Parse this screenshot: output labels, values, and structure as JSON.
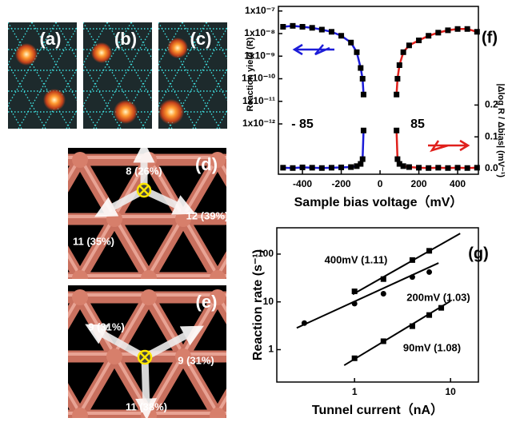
{
  "panels": [
    {
      "label": "(a)"
    },
    {
      "label": "(b)"
    },
    {
      "label": "(c)"
    },
    {
      "label": "(d)",
      "arrows": [
        "8 (26%)",
        "12 (39%)",
        "11 (35%)"
      ]
    },
    {
      "label": "(e)",
      "arrows": [
        "9 (31%)",
        "9 (31%)",
        "11 (38%)"
      ]
    }
  ],
  "chart_data": [
    {
      "type": "line",
      "label": "(f)",
      "ylabel": "Reaction yield (R)",
      "y2label": "|Δlog R / Δbias| (mV⁻¹)",
      "xlabel": "Sample bias voltage（mV）",
      "annotations": [
        "- 85",
        "85"
      ],
      "xlim": [
        -524,
        507
      ],
      "xticks": [
        -400,
        -200,
        0,
        200,
        400
      ],
      "ylog": true,
      "ylim": [
        5.9e-15,
        1.6e-07
      ],
      "yticks": [
        {
          "value": 1e-07,
          "label": "1x10⁻⁷"
        },
        {
          "value": 1e-08,
          "label": "1x10⁻⁸"
        },
        {
          "value": 1e-09,
          "label": "1x10⁻⁹"
        },
        {
          "value": 1e-10,
          "label": "1x10⁻¹⁰"
        },
        {
          "value": 1e-11,
          "label": "1x10⁻¹¹"
        },
        {
          "value": 1e-12,
          "label": "1x10⁻¹²"
        }
      ],
      "y2lim": [
        -0.0175,
        0.51
      ],
      "y2ticks": [
        {
          "value": 0,
          "label": "0.0"
        },
        0.1,
        0.2
      ],
      "marker_color": "#000000",
      "series": [
        {
          "color": "#1c1cd8",
          "x": [
            -500,
            -450,
            -400,
            -350,
            -300,
            -250,
            -200,
            -150,
            -120,
            -100,
            -90,
            -85
          ],
          "values": [
            2e-08,
            2.2e-08,
            2e-08,
            1.8e-08,
            1.5e-08,
            1.2e-08,
            8e-09,
            4e-09,
            1.5e-09,
            3e-10,
            1e-10,
            2e-11
          ]
        },
        {
          "color": "#e0201c",
          "x": [
            85,
            90,
            100,
            120,
            150,
            200,
            250,
            300,
            350,
            400,
            450,
            500
          ],
          "values": [
            2e-11,
            1e-10,
            4e-10,
            1.5e-09,
            3e-09,
            5e-09,
            8e-09,
            1.1e-08,
            1.4e-08,
            1.6e-08,
            1.6e-08,
            1.2e-08
          ]
        },
        {
          "color": "#1c1cd8",
          "axis": "y2",
          "x": [
            -500,
            -450,
            -400,
            -350,
            -300,
            -250,
            -200,
            -150,
            -120,
            -100,
            -90,
            -85
          ],
          "values": [
            0.003,
            0.002,
            0.004,
            0.003,
            0.002,
            0.003,
            0.004,
            0.005,
            0.008,
            0.015,
            0.03,
            0.12
          ]
        },
        {
          "color": "#e0201c",
          "axis": "y2",
          "x": [
            85,
            90,
            100,
            120,
            150,
            200,
            250,
            300,
            350,
            400,
            450,
            500
          ],
          "values": [
            0.12,
            0.03,
            0.015,
            0.008,
            0.005,
            0.003,
            0.002,
            0.003,
            0.002,
            0.003,
            0.002,
            0.003
          ]
        }
      ]
    },
    {
      "type": "scatter",
      "label": "(g)",
      "xlabel": "Tunnel current（nA）",
      "ylabel": "Reaction rate (s⁻¹)",
      "xlog": true,
      "ylog": true,
      "xlim": [
        0.155,
        19.5
      ],
      "ylim": [
        0.21,
        355
      ],
      "xticks": [
        1,
        10
      ],
      "yticks": [
        1,
        10,
        100
      ],
      "marker_color": "#000000",
      "series": [
        {
          "name": "400mV (1.11)",
          "marker": "square",
          "x": [
            1,
            2,
            4,
            6
          ],
          "values": [
            16.6,
            30,
            75,
            117
          ],
          "fit_x": [
            0.96,
            12.6
          ],
          "fit_y": [
            14.4,
            270
          ]
        },
        {
          "name": "200mV (1.03)",
          "marker": "circle",
          "x": [
            0.3,
            1,
            2,
            4,
            6
          ],
          "values": [
            3.6,
            9.2,
            14.8,
            33,
            42
          ],
          "fit_x": [
            0.25,
            7.5
          ],
          "fit_y": [
            2.85,
            65
          ]
        },
        {
          "name": "90mV (1.08)",
          "marker": "square",
          "x": [
            1,
            2,
            4,
            6,
            8
          ],
          "values": [
            0.66,
            1.5,
            3.1,
            5.3,
            7.5
          ],
          "fit_x": [
            0.78,
            10
          ],
          "fit_y": [
            0.47,
            10.4
          ]
        }
      ]
    }
  ]
}
